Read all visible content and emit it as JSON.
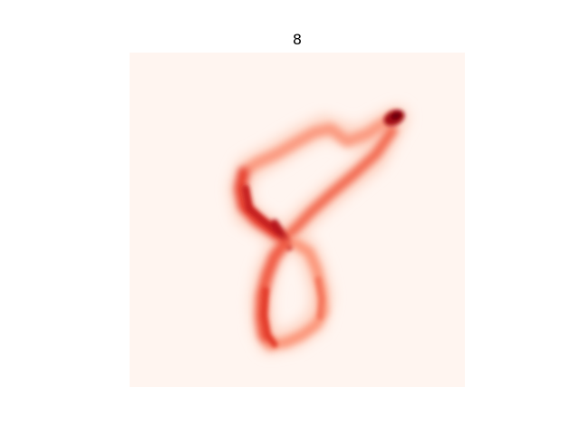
{
  "figure": {
    "title": "8",
    "colormap": "Reds",
    "background_color": "#fff5f0",
    "stroke_light": "#fcb39b",
    "stroke_mid": "#f0503a",
    "stroke_dark": "#c0141b",
    "stroke_peak": "#7a0510"
  }
}
